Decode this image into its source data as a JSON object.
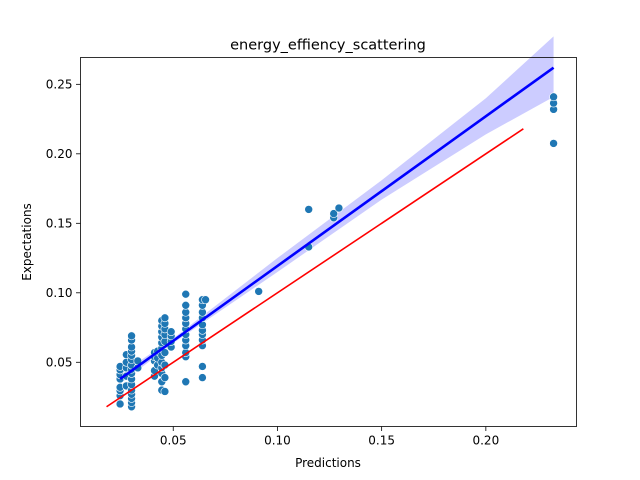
{
  "chart_data": {
    "type": "scatter",
    "title": "energy_effiency_scattering",
    "xlabel": "Predictions",
    "ylabel": "Expectations",
    "xlim": [
      0.0055,
      0.2435
    ],
    "ylim": [
      0.0038,
      0.2693
    ],
    "xticks": [
      {
        "value": 0.05,
        "label": "0.05"
      },
      {
        "value": 0.1,
        "label": "0.10"
      },
      {
        "value": 0.15,
        "label": "0.15"
      },
      {
        "value": 0.2,
        "label": "0.20"
      }
    ],
    "yticks": [
      {
        "value": 0.05,
        "label": "0.05"
      },
      {
        "value": 0.1,
        "label": "0.10"
      },
      {
        "value": 0.15,
        "label": "0.15"
      },
      {
        "value": 0.2,
        "label": "0.20"
      },
      {
        "value": 0.25,
        "label": "0.25"
      }
    ],
    "grid": false,
    "colors": {
      "points": "#1f77b4",
      "regression": "#0000ff",
      "confidence_band": "#ccccff",
      "identity": "#ff0000"
    },
    "points": [
      {
        "x": 0.0245,
        "y": 0.02
      },
      {
        "x": 0.0245,
        "y": 0.026
      },
      {
        "x": 0.0245,
        "y": 0.0295
      },
      {
        "x": 0.0245,
        "y": 0.032
      },
      {
        "x": 0.0245,
        "y": 0.038
      },
      {
        "x": 0.0245,
        "y": 0.041
      },
      {
        "x": 0.0245,
        "y": 0.0445
      },
      {
        "x": 0.0245,
        "y": 0.047
      },
      {
        "x": 0.0275,
        "y": 0.033
      },
      {
        "x": 0.0275,
        "y": 0.04
      },
      {
        "x": 0.0275,
        "y": 0.046
      },
      {
        "x": 0.0275,
        "y": 0.05
      },
      {
        "x": 0.0275,
        "y": 0.0555
      },
      {
        "x": 0.03,
        "y": 0.018
      },
      {
        "x": 0.03,
        "y": 0.021
      },
      {
        "x": 0.03,
        "y": 0.024
      },
      {
        "x": 0.03,
        "y": 0.027
      },
      {
        "x": 0.03,
        "y": 0.03
      },
      {
        "x": 0.03,
        "y": 0.034
      },
      {
        "x": 0.03,
        "y": 0.038
      },
      {
        "x": 0.03,
        "y": 0.042
      },
      {
        "x": 0.03,
        "y": 0.045
      },
      {
        "x": 0.03,
        "y": 0.048
      },
      {
        "x": 0.03,
        "y": 0.052
      },
      {
        "x": 0.03,
        "y": 0.055
      },
      {
        "x": 0.03,
        "y": 0.058
      },
      {
        "x": 0.03,
        "y": 0.061
      },
      {
        "x": 0.03,
        "y": 0.066
      },
      {
        "x": 0.03,
        "y": 0.069
      },
      {
        "x": 0.033,
        "y": 0.046
      },
      {
        "x": 0.033,
        "y": 0.051
      },
      {
        "x": 0.041,
        "y": 0.04
      },
      {
        "x": 0.041,
        "y": 0.044
      },
      {
        "x": 0.041,
        "y": 0.051
      },
      {
        "x": 0.041,
        "y": 0.054
      },
      {
        "x": 0.041,
        "y": 0.057
      },
      {
        "x": 0.0425,
        "y": 0.048
      },
      {
        "x": 0.0425,
        "y": 0.053
      },
      {
        "x": 0.0425,
        "y": 0.058
      },
      {
        "x": 0.0445,
        "y": 0.03
      },
      {
        "x": 0.0445,
        "y": 0.036
      },
      {
        "x": 0.0445,
        "y": 0.042
      },
      {
        "x": 0.0445,
        "y": 0.046
      },
      {
        "x": 0.0445,
        "y": 0.05
      },
      {
        "x": 0.0445,
        "y": 0.055
      },
      {
        "x": 0.0445,
        "y": 0.06
      },
      {
        "x": 0.0445,
        "y": 0.064
      },
      {
        "x": 0.0445,
        "y": 0.068
      },
      {
        "x": 0.0445,
        "y": 0.072
      },
      {
        "x": 0.0445,
        "y": 0.076
      },
      {
        "x": 0.0445,
        "y": 0.08
      },
      {
        "x": 0.046,
        "y": 0.029
      },
      {
        "x": 0.046,
        "y": 0.039
      },
      {
        "x": 0.046,
        "y": 0.048
      },
      {
        "x": 0.046,
        "y": 0.057
      },
      {
        "x": 0.046,
        "y": 0.065
      },
      {
        "x": 0.046,
        "y": 0.07
      },
      {
        "x": 0.046,
        "y": 0.074
      },
      {
        "x": 0.046,
        "y": 0.078
      },
      {
        "x": 0.046,
        "y": 0.082
      },
      {
        "x": 0.049,
        "y": 0.061
      },
      {
        "x": 0.049,
        "y": 0.065
      },
      {
        "x": 0.049,
        "y": 0.069
      },
      {
        "x": 0.049,
        "y": 0.072
      },
      {
        "x": 0.056,
        "y": 0.036
      },
      {
        "x": 0.056,
        "y": 0.054
      },
      {
        "x": 0.056,
        "y": 0.057
      },
      {
        "x": 0.056,
        "y": 0.062
      },
      {
        "x": 0.056,
        "y": 0.066
      },
      {
        "x": 0.056,
        "y": 0.07
      },
      {
        "x": 0.056,
        "y": 0.074
      },
      {
        "x": 0.056,
        "y": 0.078
      },
      {
        "x": 0.056,
        "y": 0.082
      },
      {
        "x": 0.056,
        "y": 0.086
      },
      {
        "x": 0.056,
        "y": 0.091
      },
      {
        "x": 0.056,
        "y": 0.099
      },
      {
        "x": 0.064,
        "y": 0.039
      },
      {
        "x": 0.064,
        "y": 0.047
      },
      {
        "x": 0.064,
        "y": 0.062
      },
      {
        "x": 0.064,
        "y": 0.066
      },
      {
        "x": 0.064,
        "y": 0.07
      },
      {
        "x": 0.064,
        "y": 0.073
      },
      {
        "x": 0.064,
        "y": 0.077
      },
      {
        "x": 0.064,
        "y": 0.082
      },
      {
        "x": 0.064,
        "y": 0.086
      },
      {
        "x": 0.064,
        "y": 0.091
      },
      {
        "x": 0.064,
        "y": 0.095
      },
      {
        "x": 0.0655,
        "y": 0.095
      },
      {
        "x": 0.091,
        "y": 0.101
      },
      {
        "x": 0.115,
        "y": 0.133
      },
      {
        "x": 0.115,
        "y": 0.16
      },
      {
        "x": 0.127,
        "y": 0.154
      },
      {
        "x": 0.127,
        "y": 0.157
      },
      {
        "x": 0.1295,
        "y": 0.161
      },
      {
        "x": 0.2325,
        "y": 0.2075
      },
      {
        "x": 0.2325,
        "y": 0.232
      },
      {
        "x": 0.2325,
        "y": 0.2365
      },
      {
        "x": 0.2325,
        "y": 0.241
      }
    ],
    "regression": {
      "x": [
        0.0245,
        0.2325
      ],
      "y": [
        0.038,
        0.262
      ],
      "band": [
        {
          "x": 0.0245,
          "lower": 0.0345,
          "upper": 0.0415
        },
        {
          "x": 0.05,
          "lower": 0.0638,
          "upper": 0.0672
        },
        {
          "x": 0.1,
          "lower": 0.115,
          "upper": 0.125
        },
        {
          "x": 0.15,
          "lower": 0.167,
          "upper": 0.181
        },
        {
          "x": 0.2,
          "lower": 0.214,
          "upper": 0.24
        },
        {
          "x": 0.2325,
          "lower": 0.241,
          "upper": 0.2845
        }
      ]
    },
    "identity_line": {
      "x": [
        0.018,
        0.218
      ],
      "y": [
        0.018,
        0.218
      ]
    }
  }
}
